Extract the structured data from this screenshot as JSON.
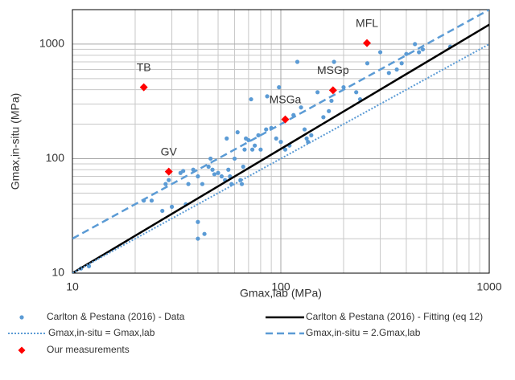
{
  "chart_data": {
    "type": "scatter",
    "x_label": "Gmax,lab (MPa)",
    "y_label": "Gmax,in-situ (MPa)",
    "log_x": true,
    "log_y": true,
    "grid": true,
    "xlim": [
      10,
      1000
    ],
    "ylim": [
      10,
      2000
    ],
    "xticks": [
      10,
      100,
      1000
    ],
    "yticks": [
      10,
      100,
      1000
    ],
    "xminorticks": [
      20,
      30,
      40,
      50,
      60,
      70,
      80,
      90,
      200,
      300,
      400,
      500,
      600,
      700,
      800,
      900
    ],
    "yminorticks": [
      20,
      30,
      40,
      50,
      60,
      70,
      80,
      90,
      200,
      300,
      400,
      500,
      600,
      700,
      800,
      900
    ],
    "series": [
      {
        "name": "Carlton & Pestana (2016) - Data",
        "kind": "scatter",
        "marker": "circle",
        "color": "#5b9bd5",
        "x": [
          11,
          12,
          22,
          24,
          27,
          28,
          29,
          30,
          33,
          34,
          35,
          36,
          38,
          40,
          40,
          40,
          42,
          43,
          45,
          46,
          47,
          48,
          50,
          52,
          54,
          55,
          56,
          57,
          58,
          60,
          62,
          64,
          65,
          66,
          67,
          68,
          70,
          72,
          73,
          75,
          78,
          80,
          85,
          86,
          90,
          95,
          98,
          100,
          105,
          110,
          115,
          120,
          125,
          130,
          133,
          135,
          140,
          150,
          160,
          170,
          175,
          180,
          200,
          230,
          240,
          260,
          300,
          330,
          360,
          380,
          400,
          440,
          460,
          480,
          650
        ],
        "values": [
          11,
          11.5,
          43,
          43,
          35,
          60,
          65,
          38,
          75,
          78,
          40,
          60,
          80,
          70,
          28,
          20,
          60,
          22,
          85,
          100,
          80,
          73,
          75,
          70,
          65,
          150,
          80,
          70,
          60,
          100,
          170,
          65,
          60,
          85,
          120,
          150,
          145,
          330,
          120,
          130,
          160,
          120,
          180,
          350,
          185,
          150,
          420,
          140,
          120,
          130,
          240,
          700,
          280,
          180,
          150,
          140,
          160,
          380,
          230,
          260,
          320,
          700,
          420,
          380,
          330,
          680,
          850,
          560,
          600,
          680,
          820,
          1000,
          850,
          900,
          950
        ]
      },
      {
        "name": "Carlton & Pestana (2016) - Fitting (eq 12)",
        "kind": "line",
        "dash": "solid",
        "width": 2.5,
        "color": "#000000",
        "x": [
          10,
          1000
        ],
        "values": [
          10,
          1480
        ]
      },
      {
        "name": "Gmax,in-situ = Gmax,lab",
        "kind": "line",
        "dash": "dotted",
        "width": 2,
        "color": "#5b9bd5",
        "x": [
          10,
          1000
        ],
        "values": [
          10,
          1000
        ]
      },
      {
        "name": "Gmax,in-situ = 2.Gmax,lab",
        "kind": "line",
        "dash": "dashed",
        "width": 2.5,
        "color": "#5b9bd5",
        "x": [
          10,
          1000
        ],
        "values": [
          20,
          2000
        ]
      },
      {
        "name": "Our measurements",
        "kind": "scatter",
        "marker": "diamond",
        "color": "#ff0000",
        "x": [
          22,
          29,
          105,
          178,
          259
        ],
        "values": [
          420,
          77,
          220,
          395,
          1020
        ],
        "labels": [
          "TB",
          "GV",
          "MSGa",
          "MSGp",
          "MFL"
        ]
      }
    ]
  }
}
